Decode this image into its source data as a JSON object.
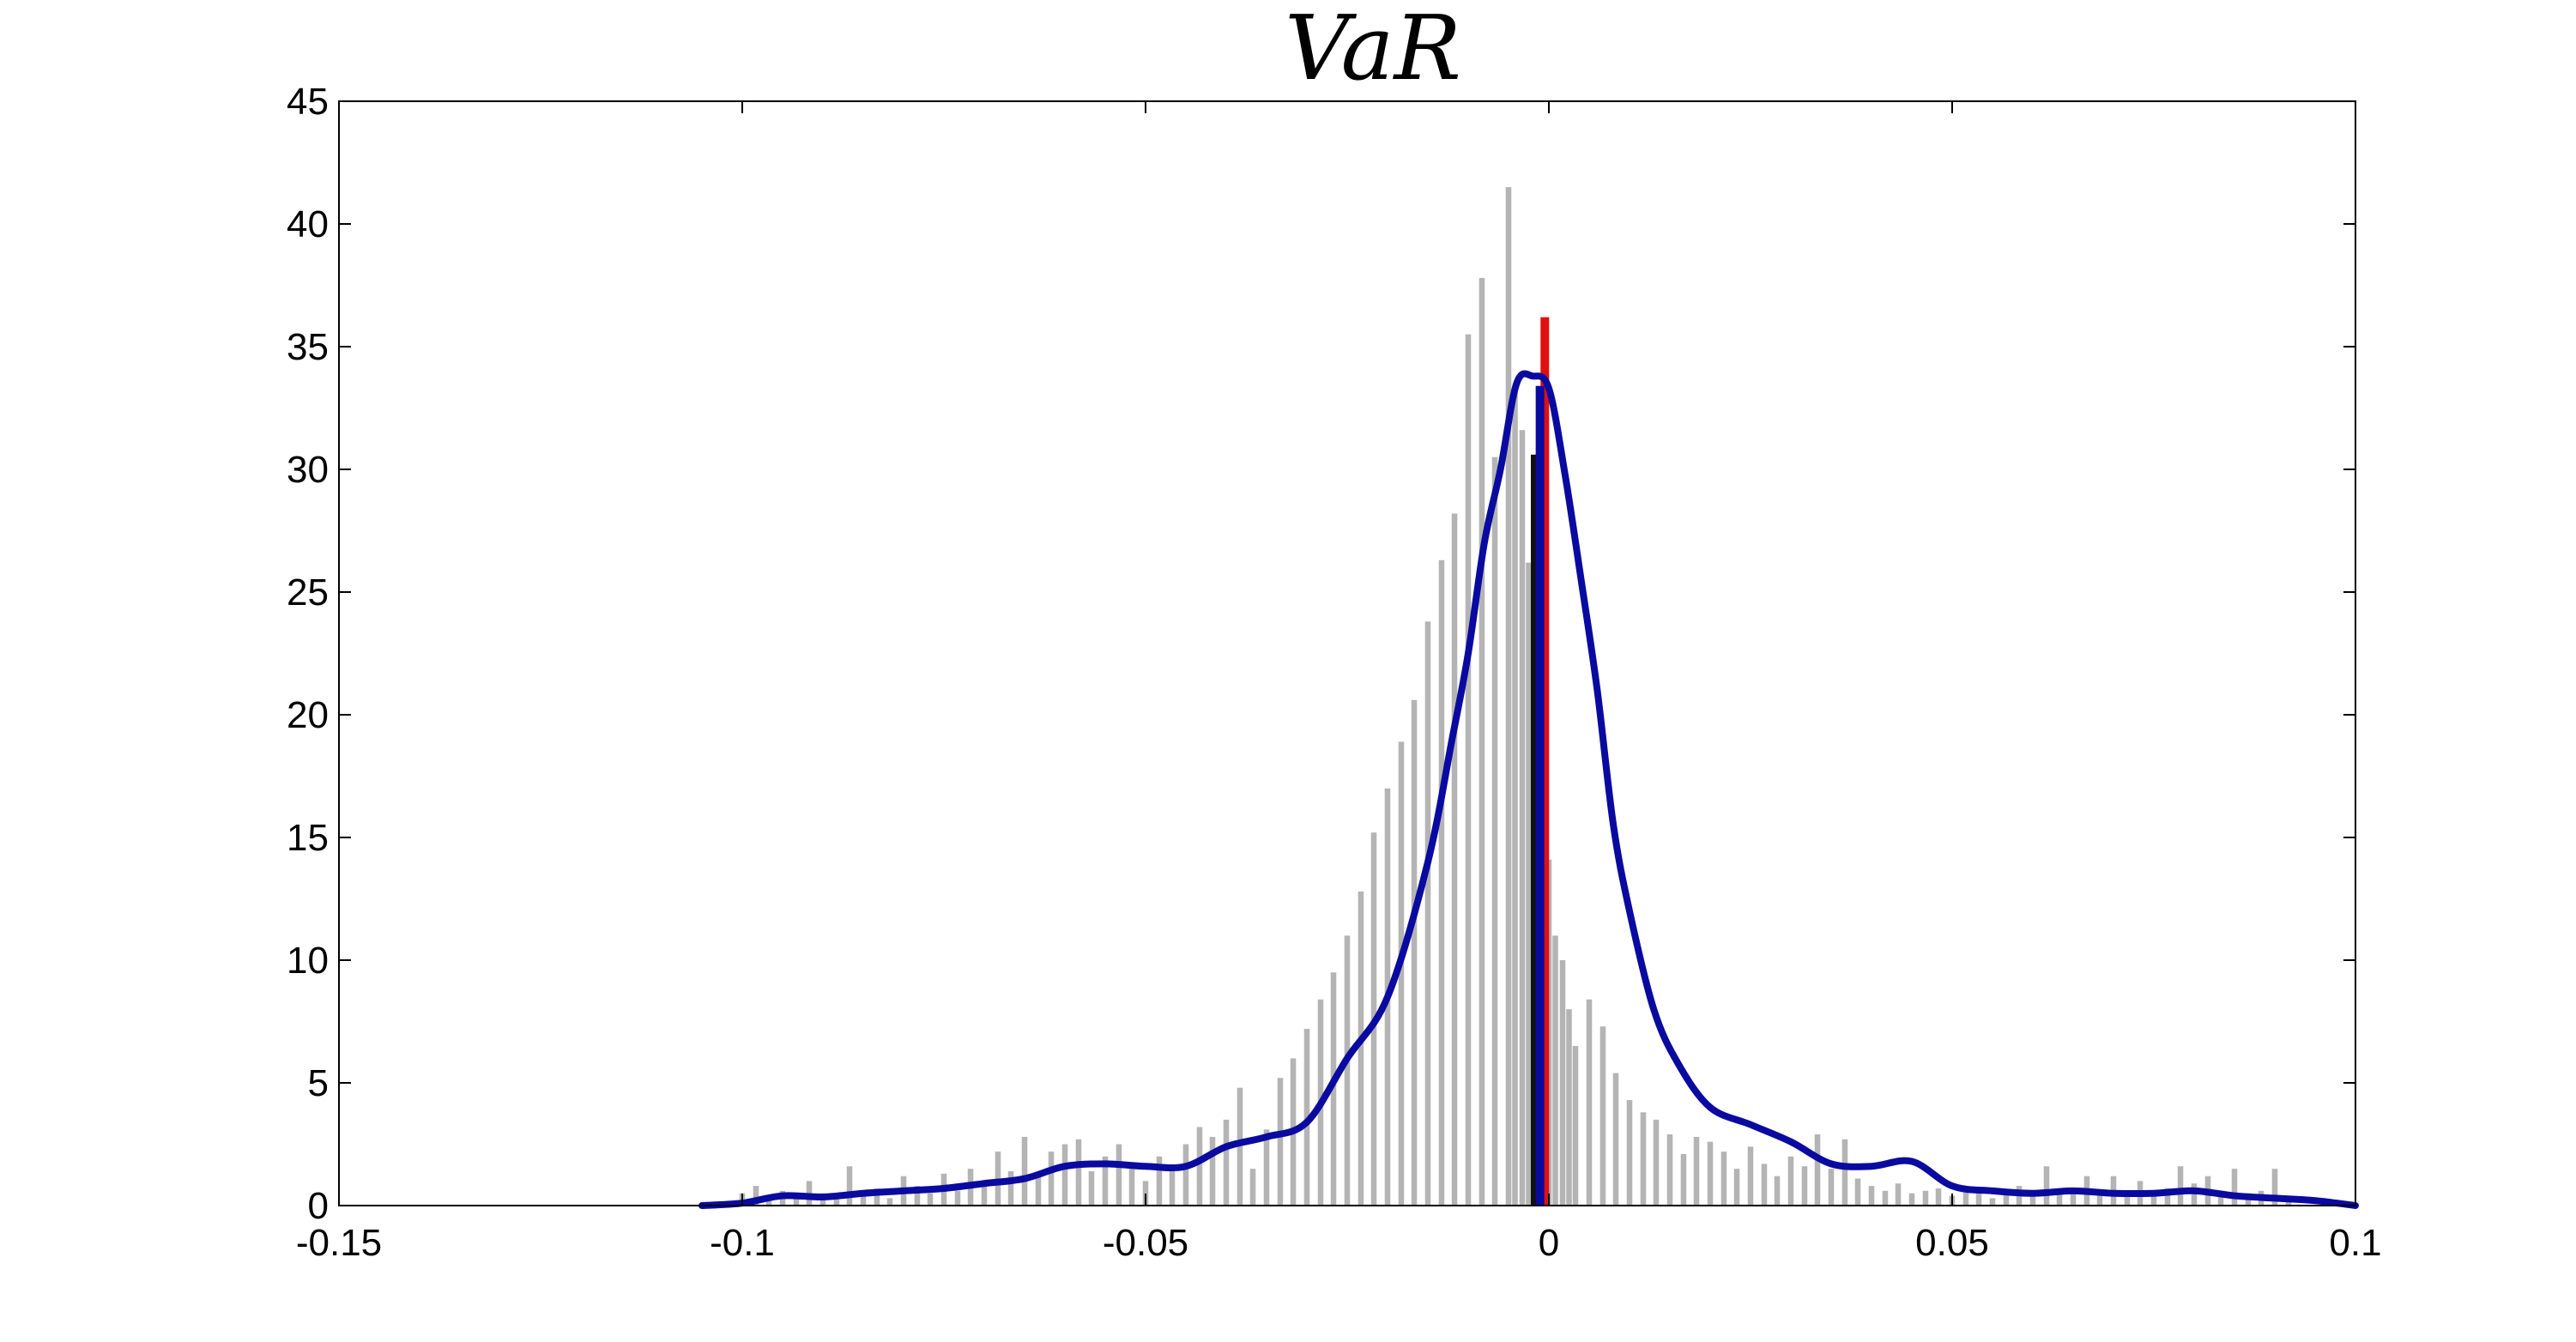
{
  "chart_data": {
    "type": "bar",
    "title": "VaR",
    "xlabel": "",
    "ylabel": "",
    "xlim": [
      -0.15,
      0.1
    ],
    "ylim": [
      0,
      45
    ],
    "xticks": [
      -0.15,
      -0.1,
      -0.05,
      0,
      0.05,
      0.1
    ],
    "xtick_labels": [
      "-0.15",
      "-0.1",
      "-0.05",
      "0",
      "0.05",
      "0.1"
    ],
    "yticks": [
      0,
      5,
      10,
      15,
      20,
      25,
      30,
      35,
      40,
      45
    ],
    "ytick_labels": [
      "0",
      "5",
      "10",
      "15",
      "20",
      "25",
      "30",
      "35",
      "40",
      "45"
    ],
    "grid": false,
    "legend": "none",
    "colors": {
      "histogram": "#b4b4b4",
      "density": "#0a0aa0",
      "marker_red": "#e01010",
      "marker_blue": "#0a0aa0",
      "marker_black": "#111111"
    },
    "histogram": {
      "bin_width": 0.00083,
      "x": [
        -0.1,
        -0.0983,
        -0.0967,
        -0.095,
        -0.0933,
        -0.0917,
        -0.09,
        -0.0883,
        -0.0867,
        -0.085,
        -0.0833,
        -0.0817,
        -0.08,
        -0.0783,
        -0.0767,
        -0.075,
        -0.0733,
        -0.0717,
        -0.07,
        -0.0683,
        -0.0667,
        -0.065,
        -0.0633,
        -0.0617,
        -0.06,
        -0.0583,
        -0.0567,
        -0.055,
        -0.0533,
        -0.0517,
        -0.05,
        -0.0483,
        -0.0467,
        -0.045,
        -0.0433,
        -0.0417,
        -0.04,
        -0.0383,
        -0.0367,
        -0.035,
        -0.0333,
        -0.0317,
        -0.03,
        -0.0283,
        -0.0267,
        -0.025,
        -0.0233,
        -0.0217,
        -0.02,
        -0.0183,
        -0.0167,
        -0.015,
        -0.0133,
        -0.0117,
        -0.01,
        -0.0083,
        -0.0067,
        -0.005,
        -0.0042,
        -0.0033,
        -0.0025,
        -0.0017,
        -0.0008,
        0.0,
        0.0008,
        0.0017,
        0.0025,
        0.0033,
        0.005,
        0.0067,
        0.0083,
        0.01,
        0.0117,
        0.0133,
        0.015,
        0.0167,
        0.0183,
        0.02,
        0.0217,
        0.0233,
        0.025,
        0.0267,
        0.0283,
        0.03,
        0.0317,
        0.0333,
        0.035,
        0.0367,
        0.0383,
        0.04,
        0.0417,
        0.0433,
        0.045,
        0.0467,
        0.0483,
        0.05,
        0.0517,
        0.0533,
        0.055,
        0.0567,
        0.0583,
        0.06,
        0.0617,
        0.0633,
        0.065,
        0.0667,
        0.0683,
        0.07,
        0.0717,
        0.0733,
        0.075,
        0.0767,
        0.0783,
        0.08,
        0.0817,
        0.0833,
        0.085,
        0.0867,
        0.0883,
        0.09,
        0.0917
      ],
      "values": [
        0.5,
        0.8,
        0.3,
        0.6,
        0.5,
        1.0,
        0.5,
        0.3,
        1.6,
        0.5,
        0.7,
        0.3,
        1.2,
        0.8,
        0.5,
        1.3,
        0.6,
        1.5,
        1.0,
        2.2,
        1.4,
        2.8,
        1.3,
        2.2,
        2.5,
        2.7,
        1.4,
        2.0,
        2.5,
        1.5,
        1.0,
        2.0,
        1.5,
        2.5,
        3.2,
        2.8,
        3.5,
        4.8,
        1.5,
        3.1,
        5.2,
        6.0,
        7.2,
        8.4,
        9.5,
        11.0,
        12.8,
        15.2,
        17.0,
        18.9,
        20.6,
        23.8,
        26.3,
        28.2,
        35.5,
        37.8,
        30.5,
        41.5,
        33.2,
        31.6,
        26.2,
        20.2,
        16.5,
        14.1,
        11.0,
        10.0,
        8.0,
        6.5,
        8.4,
        7.3,
        5.4,
        4.3,
        3.8,
        3.5,
        2.9,
        2.1,
        2.8,
        2.6,
        2.2,
        1.5,
        2.4,
        1.7,
        1.2,
        2.0,
        1.6,
        2.9,
        1.5,
        2.7,
        1.1,
        0.8,
        0.6,
        0.9,
        0.5,
        0.6,
        0.7,
        0.4,
        0.6,
        0.5,
        0.3,
        0.6,
        0.8,
        0.5,
        1.6,
        0.5,
        0.5,
        1.2,
        0.6,
        1.2,
        0.5,
        1.0,
        0.6,
        0.7,
        1.6,
        0.9,
        1.2,
        0.6,
        1.5,
        0.5,
        0.6,
        1.5,
        0.3
      ]
    },
    "density": {
      "x": [
        -0.105,
        -0.1,
        -0.095,
        -0.09,
        -0.085,
        -0.08,
        -0.075,
        -0.07,
        -0.065,
        -0.06,
        -0.055,
        -0.05,
        -0.045,
        -0.04,
        -0.035,
        -0.03,
        -0.025,
        -0.02,
        -0.015,
        -0.012,
        -0.01,
        -0.008,
        -0.006,
        -0.004,
        -0.002,
        0.0,
        0.002,
        0.004,
        0.006,
        0.008,
        0.01,
        0.013,
        0.016,
        0.02,
        0.025,
        0.03,
        0.035,
        0.04,
        0.045,
        0.05,
        0.055,
        0.06,
        0.065,
        0.07,
        0.075,
        0.08,
        0.085,
        0.09,
        0.095,
        0.1
      ],
      "values": [
        0.0,
        0.1,
        0.4,
        0.35,
        0.5,
        0.6,
        0.7,
        0.9,
        1.1,
        1.6,
        1.7,
        1.6,
        1.6,
        2.4,
        2.8,
        3.4,
        6.0,
        8.5,
        14.0,
        19.0,
        22.5,
        27.0,
        30.0,
        33.5,
        33.8,
        33.3,
        29.8,
        25.5,
        21.0,
        15.5,
        12.0,
        8.0,
        5.8,
        4.0,
        3.3,
        2.6,
        1.7,
        1.6,
        1.8,
        0.8,
        0.6,
        0.5,
        0.6,
        0.5,
        0.5,
        0.6,
        0.4,
        0.3,
        0.2,
        0.0
      ]
    },
    "markers": [
      {
        "x": -0.0005,
        "value": 36.2,
        "color": "red"
      },
      {
        "x": -0.0017,
        "value": 30.6,
        "color": "black"
      },
      {
        "x": -0.0011,
        "value": 33.4,
        "color": "blue"
      }
    ]
  }
}
